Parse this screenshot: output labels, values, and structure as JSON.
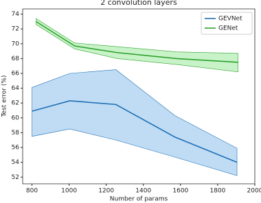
{
  "chart_data": {
    "type": "line",
    "title": "2 convolution layers",
    "xlabel": "Number of params",
    "ylabel": "Test error (%)",
    "xlim": [
      750,
      2000
    ],
    "xticks": [
      800,
      1000,
      1200,
      1400,
      1600,
      1800,
      2000
    ],
    "ylim": [
      51.1,
      74.7
    ],
    "yticks": [
      52,
      54,
      56,
      58,
      60,
      62,
      64,
      66,
      68,
      70,
      72,
      74
    ],
    "legend": "upper right",
    "series": [
      {
        "name": "GEVNet",
        "color": "#1f6fb4",
        "band_color": "#aad0f0",
        "x": [
          800,
          1004,
          1252,
          1570,
          1904
        ],
        "values": [
          60.9,
          62.3,
          61.8,
          57.4,
          54.0
        ],
        "upper": [
          64.1,
          66.0,
          66.5,
          60.3,
          55.9
        ],
        "lower": [
          57.5,
          58.5,
          57.0,
          54.7,
          52.2
        ]
      },
      {
        "name": "GENet",
        "color": "#2ca02c",
        "band_color": "#b5efb5",
        "x": [
          822,
          1030,
          1260,
          1580,
          1910
        ],
        "values": [
          73.0,
          69.7,
          68.8,
          68.0,
          67.5
        ],
        "upper": [
          73.4,
          70.1,
          69.6,
          68.9,
          68.7
        ],
        "lower": [
          72.6,
          69.3,
          68.0,
          67.2,
          66.2
        ]
      }
    ]
  }
}
